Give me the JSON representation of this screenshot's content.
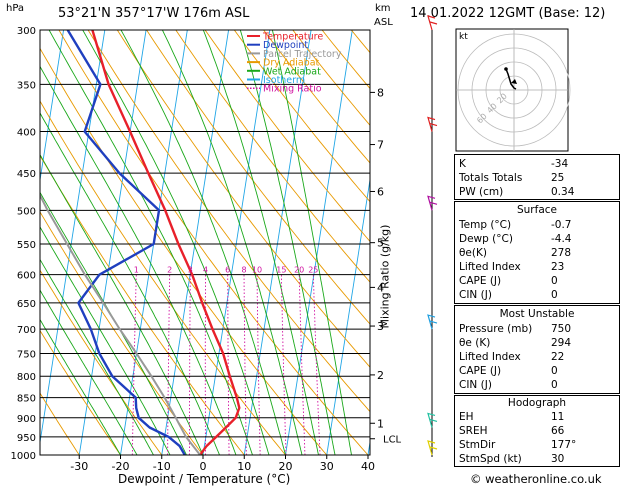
{
  "header": {
    "hpa_label": "hPa",
    "location": "53°21'N  357°17'W  176m  ASL",
    "km_label": "km",
    "asl_label": "ASL",
    "datetime": "14.01.2022  12GMT  (Base: 12)"
  },
  "chart_data": {
    "type": "skew-t log-p",
    "xlabel": "Dewpoint / Temperature (°C)",
    "ylabel_right": "Mixing Ratio (g/kg)",
    "x_ticks": [
      -30,
      -20,
      -10,
      0,
      10,
      20,
      30,
      40
    ],
    "pressure_ticks": [
      300,
      350,
      400,
      450,
      500,
      550,
      600,
      650,
      700,
      750,
      800,
      850,
      900,
      950,
      1000
    ],
    "xlim": [
      -40,
      40
    ],
    "plim": [
      1000,
      300
    ],
    "km_ticks": [
      {
        "label": "1",
        "p": 914
      },
      {
        "label": "2",
        "p": 797
      },
      {
        "label": "3",
        "p": 694
      },
      {
        "label": "4",
        "p": 622
      },
      {
        "label": "5",
        "p": 548
      },
      {
        "label": "6",
        "p": 474
      },
      {
        "label": "7",
        "p": 415
      },
      {
        "label": "8",
        "p": 358
      }
    ],
    "lcl": {
      "label": "LCL",
      "p": 955
    },
    "mixing_ratio_labels": [
      "1",
      "2",
      "3",
      "4",
      "6",
      "8",
      "10",
      "15",
      "20",
      "25"
    ],
    "mixing_ratio_values": [
      1,
      2,
      3,
      4,
      6,
      8,
      10,
      15,
      20,
      25
    ],
    "legend": [
      {
        "label": "Temperature",
        "color": "#e8202a",
        "style": "solid"
      },
      {
        "label": "Dewpoint",
        "color": "#1f3fbf",
        "style": "solid"
      },
      {
        "label": "Parcel Trajectory",
        "color": "#999999",
        "style": "solid"
      },
      {
        "label": "Dry Adiabat",
        "color": "#e89a00",
        "style": "solid"
      },
      {
        "label": "Wet Adiabat",
        "color": "#1aa81a",
        "style": "solid"
      },
      {
        "label": "Isotherm",
        "color": "#22a6e6",
        "style": "solid"
      },
      {
        "label": "Mixing Ratio",
        "color": "#d011a0",
        "style": "dotted"
      }
    ],
    "series": [
      {
        "name": "Temperature",
        "color": "#e8202a",
        "points": [
          [
            1000,
            -0.7
          ],
          [
            975,
            0.5
          ],
          [
            950,
            2.5
          ],
          [
            925,
            4.5
          ],
          [
            900,
            6.5
          ],
          [
            875,
            7
          ],
          [
            850,
            6
          ],
          [
            800,
            3.5
          ],
          [
            750,
            1
          ],
          [
            700,
            -2.5
          ],
          [
            650,
            -6
          ],
          [
            600,
            -9.5
          ],
          [
            550,
            -14
          ],
          [
            500,
            -18.5
          ],
          [
            450,
            -24
          ],
          [
            400,
            -30
          ],
          [
            350,
            -37
          ],
          [
            300,
            -43
          ]
        ]
      },
      {
        "name": "Dewpoint",
        "color": "#1f3fbf",
        "points": [
          [
            1000,
            -4.4
          ],
          [
            975,
            -6
          ],
          [
            950,
            -9
          ],
          [
            925,
            -14
          ],
          [
            900,
            -17
          ],
          [
            875,
            -18
          ],
          [
            850,
            -18.5
          ],
          [
            800,
            -25
          ],
          [
            750,
            -29
          ],
          [
            700,
            -32
          ],
          [
            650,
            -36
          ],
          [
            600,
            -32
          ],
          [
            550,
            -20
          ],
          [
            500,
            -20
          ],
          [
            450,
            -31
          ],
          [
            400,
            -41
          ],
          [
            350,
            -39
          ],
          [
            300,
            -49
          ]
        ]
      },
      {
        "name": "Parcel Trajectory",
        "color": "#999999",
        "points": [
          [
            1000,
            -0.7
          ],
          [
            950,
            -4.8
          ],
          [
            900,
            -8
          ],
          [
            850,
            -11.5
          ],
          [
            800,
            -15.5
          ],
          [
            750,
            -20
          ],
          [
            700,
            -25
          ],
          [
            650,
            -30
          ],
          [
            600,
            -35.5
          ],
          [
            550,
            -41
          ],
          [
            500,
            -47
          ],
          [
            450,
            -53
          ],
          [
            400,
            -59
          ],
          [
            350,
            -65
          ],
          [
            300,
            -71
          ]
        ]
      }
    ],
    "wind_barbs": [
      {
        "p": 1000,
        "color": "#e0d000"
      },
      {
        "p": 925,
        "color": "#20c0a0"
      },
      {
        "p": 700,
        "color": "#20a0e0"
      },
      {
        "p": 500,
        "color": "#b010a0"
      },
      {
        "p": 400,
        "color": "#e02020"
      },
      {
        "p": 300,
        "color": "#e02020"
      }
    ]
  },
  "hodograph": {
    "unit_label": "kt",
    "ring_labels": [
      "20",
      "40",
      "60"
    ]
  },
  "indices": {
    "rows": [
      {
        "k": "K",
        "v": "-34"
      },
      {
        "k": "Totals Totals",
        "v": "25"
      },
      {
        "k": "PW (cm)",
        "v": "0.34"
      }
    ]
  },
  "surface": {
    "title": "Surface",
    "rows": [
      {
        "k": "Temp (°C)",
        "v": "-0.7"
      },
      {
        "k": "Dewp (°C)",
        "v": "-4.4"
      },
      {
        "k": "θe(K)",
        "v": "278"
      },
      {
        "k": "Lifted Index",
        "v": "23"
      },
      {
        "k": "CAPE (J)",
        "v": "0"
      },
      {
        "k": "CIN (J)",
        "v": "0"
      }
    ]
  },
  "most_unstable": {
    "title": "Most Unstable",
    "rows": [
      {
        "k": "Pressure (mb)",
        "v": "750"
      },
      {
        "k": "θe (K)",
        "v": "294"
      },
      {
        "k": "Lifted Index",
        "v": "22"
      },
      {
        "k": "CAPE (J)",
        "v": "0"
      },
      {
        "k": "CIN (J)",
        "v": "0"
      }
    ]
  },
  "hodograph_table": {
    "title": "Hodograph",
    "rows": [
      {
        "k": "EH",
        "v": "11"
      },
      {
        "k": "SREH",
        "v": "66"
      },
      {
        "k": "StmDir",
        "v": "177°"
      },
      {
        "k": "StmSpd (kt)",
        "v": "30"
      }
    ]
  },
  "footer": {
    "credit": "© weatheronline.co.uk"
  }
}
